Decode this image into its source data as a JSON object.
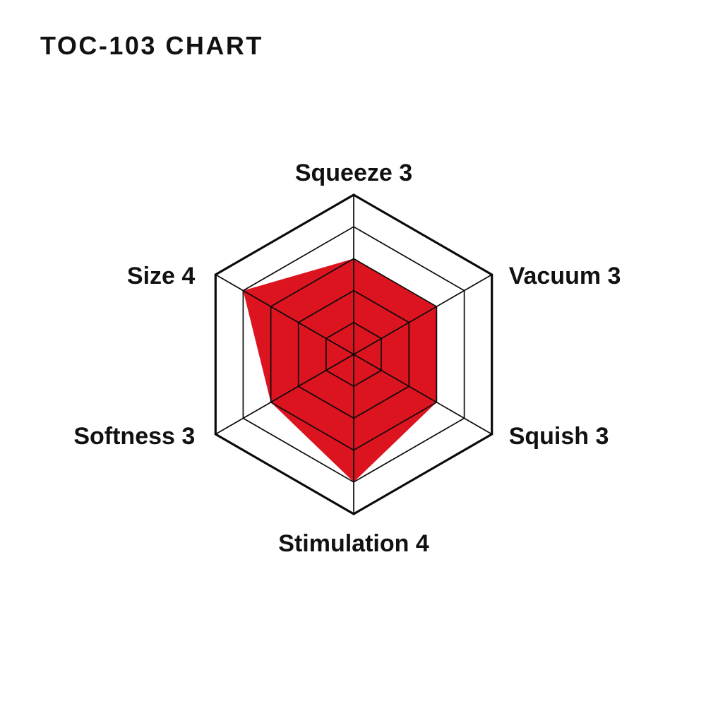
{
  "header": {
    "title": "TOC-103 CHART"
  },
  "chart_data": {
    "type": "radar",
    "shape": "hexagon",
    "title": "TOC-103 CHART",
    "rings": 5,
    "value_range": [
      0,
      5
    ],
    "grid": "on",
    "legend": "none",
    "categories": [
      "Squeeze",
      "Vacuum",
      "Squish",
      "Stimulation",
      "Softness",
      "Size"
    ],
    "values": [
      3,
      3,
      3,
      4,
      3,
      4
    ],
    "axes": [
      {
        "label": "Squeeze",
        "value": 3,
        "display": "Squeeze 3"
      },
      {
        "label": "Vacuum",
        "value": 3,
        "display": "Vacuum 3"
      },
      {
        "label": "Squish",
        "value": 3,
        "display": "Squish 3"
      },
      {
        "label": "Stimulation",
        "value": 4,
        "display": "Stimulation 4"
      },
      {
        "label": "Softness",
        "value": 3,
        "display": "Softness 3"
      },
      {
        "label": "Size",
        "value": 4,
        "display": "Size 4"
      }
    ],
    "colors": {
      "fill": "#DC1420",
      "grid": "#0A0A0A",
      "text": "#111111",
      "background": "#FFFFFF"
    }
  }
}
